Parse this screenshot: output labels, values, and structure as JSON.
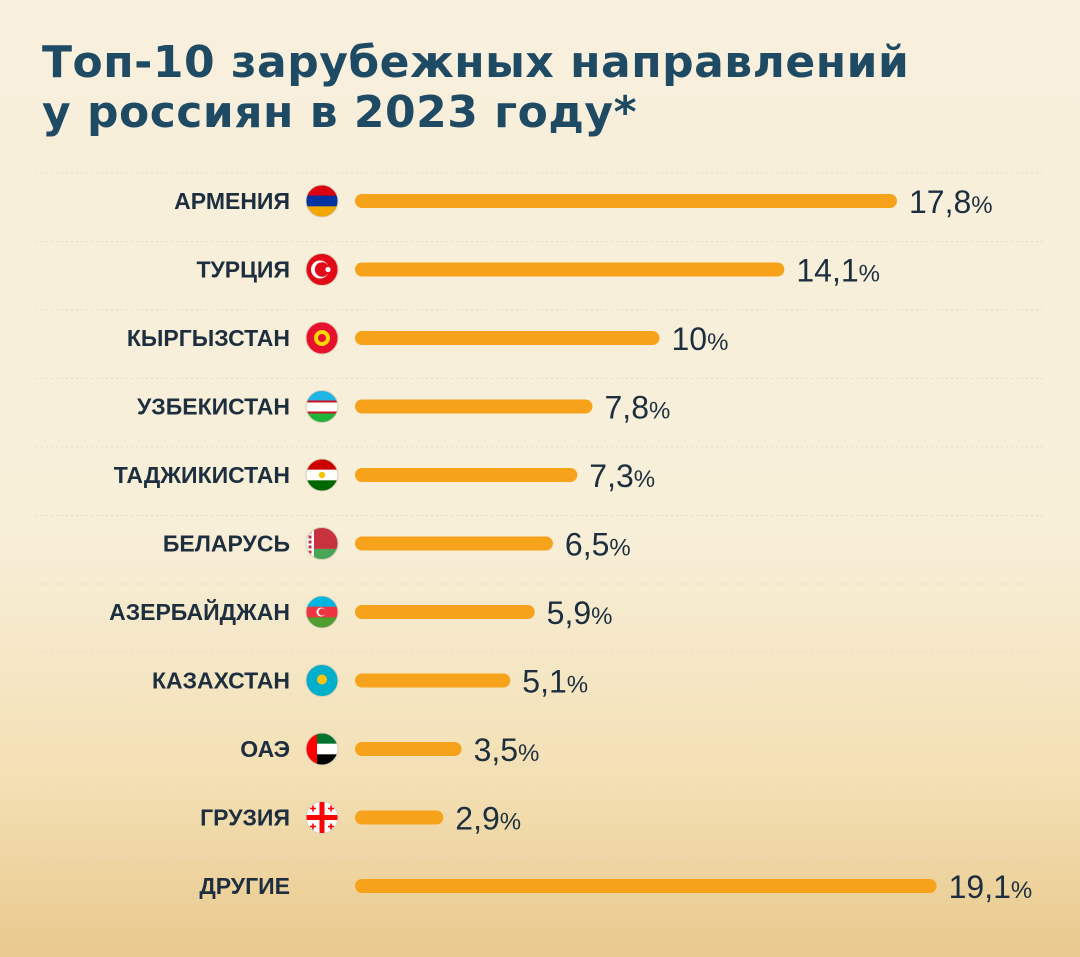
{
  "title_lines": [
    "Топ-10 зарубежных направлений",
    "у россиян в 2023 году*"
  ],
  "colors": {
    "bar": "#f7a21b",
    "title": "#1f4a63",
    "text": "#1d2f3f"
  },
  "chart_data": {
    "type": "bar",
    "orientation": "horizontal",
    "title": "Топ-10 зарубежных направлений у россиян в 2023 году*",
    "unit": "%",
    "categories": [
      "АРМЕНИЯ",
      "ТУРЦИЯ",
      "КЫРГЫЗСТАН",
      "УЗБЕКИСТАН",
      "ТАДЖИКИСТАН",
      "БЕЛАРУСЬ",
      "АЗЕРБАЙДЖАН",
      "КАЗАХСТАН",
      "ОАЭ",
      "ГРУЗИЯ",
      "ДРУГИЕ"
    ],
    "values": [
      17.8,
      14.1,
      10,
      7.8,
      7.3,
      6.5,
      5.9,
      5.1,
      3.5,
      2.9,
      19.1
    ],
    "value_labels": [
      "17,8",
      "14,1",
      "10",
      "7,8",
      "7,3",
      "6,5",
      "5,9",
      "5,1",
      "3,5",
      "2,9",
      "19,1"
    ],
    "flags": [
      "armenia-flag",
      "turkey-flag",
      "kyrgyzstan-flag",
      "uzbekistan-flag",
      "tajikistan-flag",
      "belarus-flag",
      "azerbaijan-flag",
      "kazakhstan-flag",
      "uae-flag",
      "georgia-flag",
      null
    ],
    "grid": false,
    "legend": "none"
  }
}
